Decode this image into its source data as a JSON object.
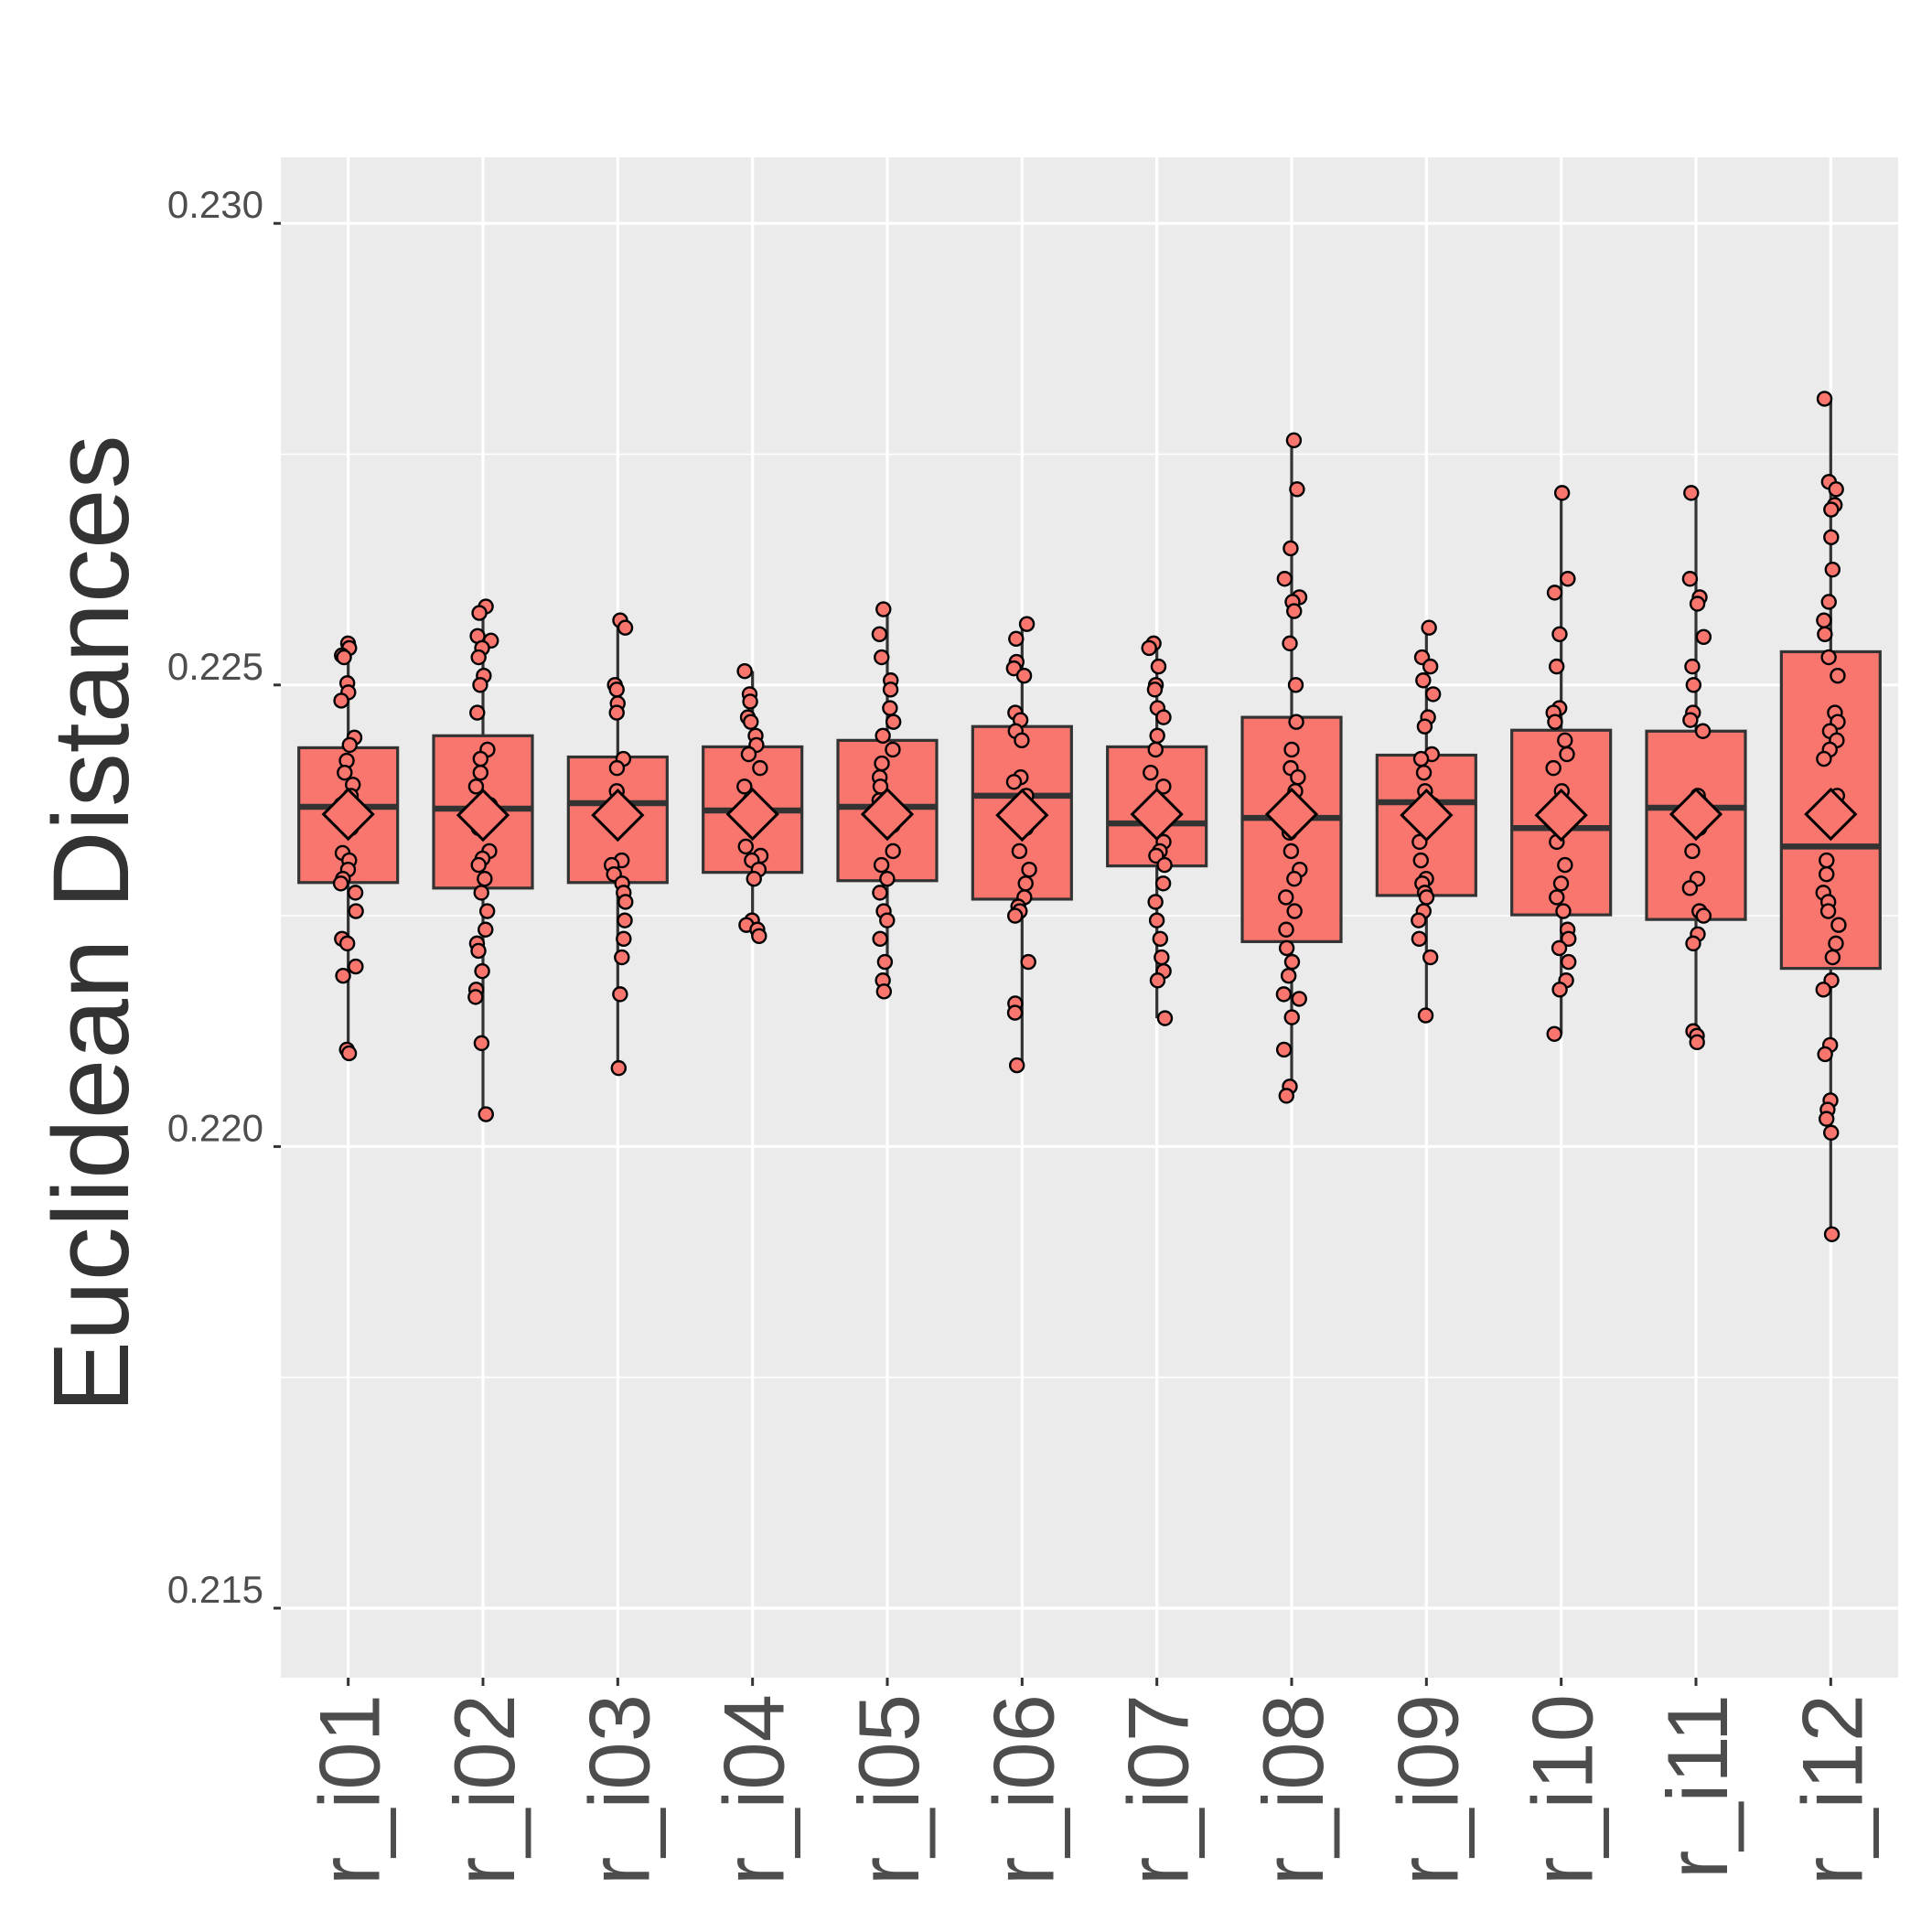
{
  "chart_data": {
    "type": "box",
    "title": "",
    "xlabel": "",
    "ylabel": "Euclidean Distances",
    "ylim": [
      0.2143,
      0.2307
    ],
    "yticks": [
      0.215,
      0.22,
      0.225,
      0.23
    ],
    "ytick_labels": [
      "0.215",
      "0.220",
      "0.225",
      "0.230"
    ],
    "grid": true,
    "legend": "none",
    "colors": {
      "fill": "#F8766D",
      "outline": "#333333",
      "panel": "#EBEBEB",
      "grid": "#FFFFFF",
      "point_stroke": "#000000"
    },
    "categories": [
      "r_i01",
      "r_i02",
      "r_i03",
      "r_i04",
      "r_i05",
      "r_i06",
      "r_i07",
      "r_i08",
      "r_i09",
      "r_i10",
      "r_i11",
      "r_i12"
    ],
    "boxes": [
      {
        "q1": 0.22286,
        "median": 0.22368,
        "q3": 0.22432,
        "whisker_low": 0.22101,
        "whisker_high": 0.22542,
        "mean": 0.2236
      },
      {
        "q1": 0.2228,
        "median": 0.22366,
        "q3": 0.22445,
        "whisker_low": 0.22035,
        "whisker_high": 0.22585,
        "mean": 0.22359
      },
      {
        "q1": 0.22286,
        "median": 0.22372,
        "q3": 0.22422,
        "whisker_low": 0.22085,
        "whisker_high": 0.2257,
        "mean": 0.22359
      },
      {
        "q1": 0.22297,
        "median": 0.22364,
        "q3": 0.22433,
        "whisker_low": 0.22228,
        "whisker_high": 0.22515,
        "mean": 0.2236
      },
      {
        "q1": 0.22288,
        "median": 0.22368,
        "q3": 0.2244,
        "whisker_low": 0.22168,
        "whisker_high": 0.22582,
        "mean": 0.2236
      },
      {
        "q1": 0.22268,
        "median": 0.2238,
        "q3": 0.22455,
        "whisker_low": 0.22088,
        "whisker_high": 0.22566,
        "mean": 0.22359
      },
      {
        "q1": 0.22304,
        "median": 0.2235,
        "q3": 0.22433,
        "whisker_low": 0.22139,
        "whisker_high": 0.22545,
        "mean": 0.2236
      },
      {
        "q1": 0.22222,
        "median": 0.22356,
        "q3": 0.22465,
        "whisker_low": 0.2205,
        "whisker_high": 0.22765,
        "mean": 0.2236
      },
      {
        "q1": 0.22272,
        "median": 0.22373,
        "q3": 0.22424,
        "whisker_low": 0.22142,
        "whisker_high": 0.22562,
        "mean": 0.22359
      },
      {
        "q1": 0.22251,
        "median": 0.22345,
        "q3": 0.22451,
        "whisker_low": 0.22122,
        "whisker_high": 0.22708,
        "mean": 0.22359
      },
      {
        "q1": 0.22246,
        "median": 0.22367,
        "q3": 0.2245,
        "whisker_low": 0.22113,
        "whisker_high": 0.22708,
        "mean": 0.2236
      },
      {
        "q1": 0.22193,
        "median": 0.22325,
        "q3": 0.22536,
        "whisker_low": 0.21905,
        "whisker_high": 0.2281,
        "mean": 0.2236
      }
    ],
    "points": [
      [
        0.22545,
        0.2254,
        0.22532,
        0.2253,
        0.22502,
        0.22492,
        0.22483,
        0.22443,
        0.22435,
        0.22418,
        0.22405,
        0.22392,
        0.2238,
        0.2237,
        0.22362,
        0.22355,
        0.22345,
        0.22318,
        0.2231,
        0.223,
        0.2229,
        0.22285,
        0.22275,
        0.22255,
        0.22225,
        0.2222,
        0.22195,
        0.22185,
        0.22105,
        0.22101
      ],
      [
        0.22585,
        0.22578,
        0.22553,
        0.22548,
        0.2254,
        0.2253,
        0.2251,
        0.225,
        0.2247,
        0.2243,
        0.2242,
        0.22405,
        0.2239,
        0.2237,
        0.22345,
        0.2232,
        0.22312,
        0.22305,
        0.2229,
        0.22275,
        0.22255,
        0.22235,
        0.2222,
        0.22212,
        0.2219,
        0.2217,
        0.22162,
        0.22112,
        0.22035
      ],
      [
        0.2257,
        0.22562,
        0.225,
        0.22495,
        0.2248,
        0.2247,
        0.2242,
        0.2241,
        0.22385,
        0.2237,
        0.22355,
        0.2231,
        0.22305,
        0.22295,
        0.22285,
        0.22275,
        0.22265,
        0.22245,
        0.22225,
        0.22205,
        0.22165,
        0.22085
      ],
      [
        0.22515,
        0.2249,
        0.22482,
        0.22465,
        0.2246,
        0.22445,
        0.22435,
        0.22425,
        0.2241,
        0.2239,
        0.22375,
        0.2236,
        0.2235,
        0.22325,
        0.22315,
        0.2231,
        0.223,
        0.2229,
        0.22245,
        0.2224,
        0.22235,
        0.22228
      ],
      [
        0.22582,
        0.22555,
        0.2253,
        0.22505,
        0.22495,
        0.22475,
        0.2246,
        0.22445,
        0.2243,
        0.22415,
        0.224,
        0.2239,
        0.22375,
        0.2236,
        0.22348,
        0.2232,
        0.22305,
        0.2229,
        0.22275,
        0.22255,
        0.22245,
        0.22225,
        0.222,
        0.2218,
        0.22168
      ],
      [
        0.22566,
        0.2255,
        0.22525,
        0.22518,
        0.2251,
        0.2247,
        0.22462,
        0.2245,
        0.2244,
        0.224,
        0.22395,
        0.2238,
        0.22365,
        0.22345,
        0.2232,
        0.223,
        0.22285,
        0.2227,
        0.2226,
        0.22255,
        0.2225,
        0.222,
        0.22155,
        0.22145,
        0.22088
      ],
      [
        0.22545,
        0.2254,
        0.2252,
        0.225,
        0.22495,
        0.22475,
        0.22465,
        0.22445,
        0.2243,
        0.22405,
        0.2239,
        0.2237,
        0.2235,
        0.2233,
        0.2232,
        0.22315,
        0.22305,
        0.22285,
        0.22265,
        0.22245,
        0.22225,
        0.22205,
        0.2219,
        0.2218,
        0.22139
      ],
      [
        0.22765,
        0.22712,
        0.22648,
        0.22615,
        0.22595,
        0.2259,
        0.2258,
        0.22545,
        0.225,
        0.2246,
        0.2243,
        0.2241,
        0.224,
        0.22385,
        0.2236,
        0.2234,
        0.2232,
        0.223,
        0.2229,
        0.2227,
        0.22255,
        0.22235,
        0.22215,
        0.222,
        0.22185,
        0.22165,
        0.2216,
        0.2214,
        0.22105,
        0.22065,
        0.22055
      ],
      [
        0.22562,
        0.2253,
        0.2252,
        0.22505,
        0.2249,
        0.22465,
        0.22455,
        0.22425,
        0.2242,
        0.22405,
        0.22385,
        0.2237,
        0.22355,
        0.2233,
        0.2231,
        0.2229,
        0.22285,
        0.22275,
        0.2227,
        0.22255,
        0.22245,
        0.22225,
        0.22205,
        0.22142
      ],
      [
        0.22708,
        0.22615,
        0.226,
        0.22555,
        0.2252,
        0.22475,
        0.2247,
        0.2246,
        0.2244,
        0.22425,
        0.2241,
        0.22385,
        0.22365,
        0.22345,
        0.2233,
        0.22305,
        0.22285,
        0.2227,
        0.22255,
        0.22235,
        0.22225,
        0.22215,
        0.222,
        0.2218,
        0.2217,
        0.22122
      ],
      [
        0.22708,
        0.22615,
        0.22595,
        0.22588,
        0.22552,
        0.2252,
        0.225,
        0.2247,
        0.22462,
        0.2245,
        0.2238,
        0.22372,
        0.22345,
        0.2232,
        0.2229,
        0.2228,
        0.22255,
        0.2225,
        0.2223,
        0.2222,
        0.22125,
        0.2212,
        0.22113
      ],
      [
        0.2281,
        0.2272,
        0.22712,
        0.22695,
        0.2269,
        0.2266,
        0.22625,
        0.2259,
        0.2257,
        0.22555,
        0.2253,
        0.2251,
        0.2247,
        0.2246,
        0.2245,
        0.2244,
        0.2243,
        0.2242,
        0.2238,
        0.22355,
        0.2231,
        0.22295,
        0.22275,
        0.22265,
        0.22255,
        0.2224,
        0.2222,
        0.22205,
        0.2218,
        0.2217,
        0.2211,
        0.221,
        0.2205,
        0.2204,
        0.2203,
        0.22015,
        0.21905
      ]
    ]
  }
}
